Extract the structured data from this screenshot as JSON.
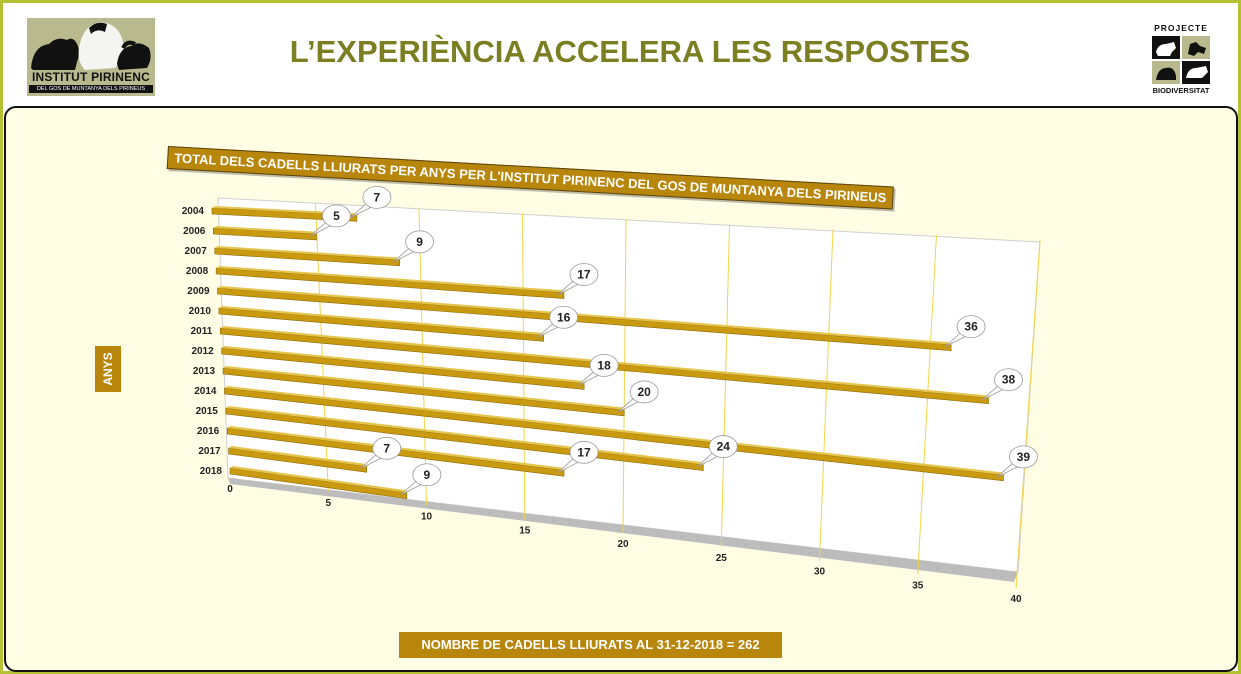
{
  "header": {
    "title": "L’EXPERIÈNCIA ACCELERA LES RESPOSTES",
    "logo_left_name": "INSTITUT PIRINENC",
    "logo_left_subtitle": "DEL GOS DE MUNTANYA DELS PIRINEUS",
    "logo_right_top": "PROJECTE",
    "logo_right_bottom": "BIODIVERSITAT"
  },
  "colors": {
    "frame": "#b3c132",
    "title_text": "#7b7f22",
    "panel_bg": "#fffde4",
    "label_bg": "#b8860b",
    "bar_fill": "#c99a10",
    "gridline": "#f2d54a"
  },
  "footer": {
    "total_label": "NOMBRE DE CADELLS LLIURATS AL 31-12-2018 = 262"
  },
  "chart_data": {
    "type": "bar",
    "orientation": "horizontal",
    "title": "TOTAL DELS CADELLS LLIURATS PER ANYS PER L'INSTITUT PIRINENC DEL GOS DE MUNTANYA DELS PIRINEUS",
    "ylabel": "ANYS",
    "xlabel": "",
    "categories": [
      "2004",
      "2006",
      "2007",
      "2008",
      "2009",
      "2010",
      "2011",
      "2012",
      "2013",
      "2014",
      "2015",
      "2016",
      "2017",
      "2018"
    ],
    "values": [
      7,
      5,
      9,
      17,
      36,
      16,
      38,
      18,
      20,
      39,
      24,
      17,
      7,
      9
    ],
    "xlim": [
      0,
      40
    ],
    "xticks": [
      0,
      5,
      10,
      15,
      20,
      25,
      30,
      35,
      40
    ],
    "data_labels": true,
    "grid": true,
    "legend": "none"
  }
}
